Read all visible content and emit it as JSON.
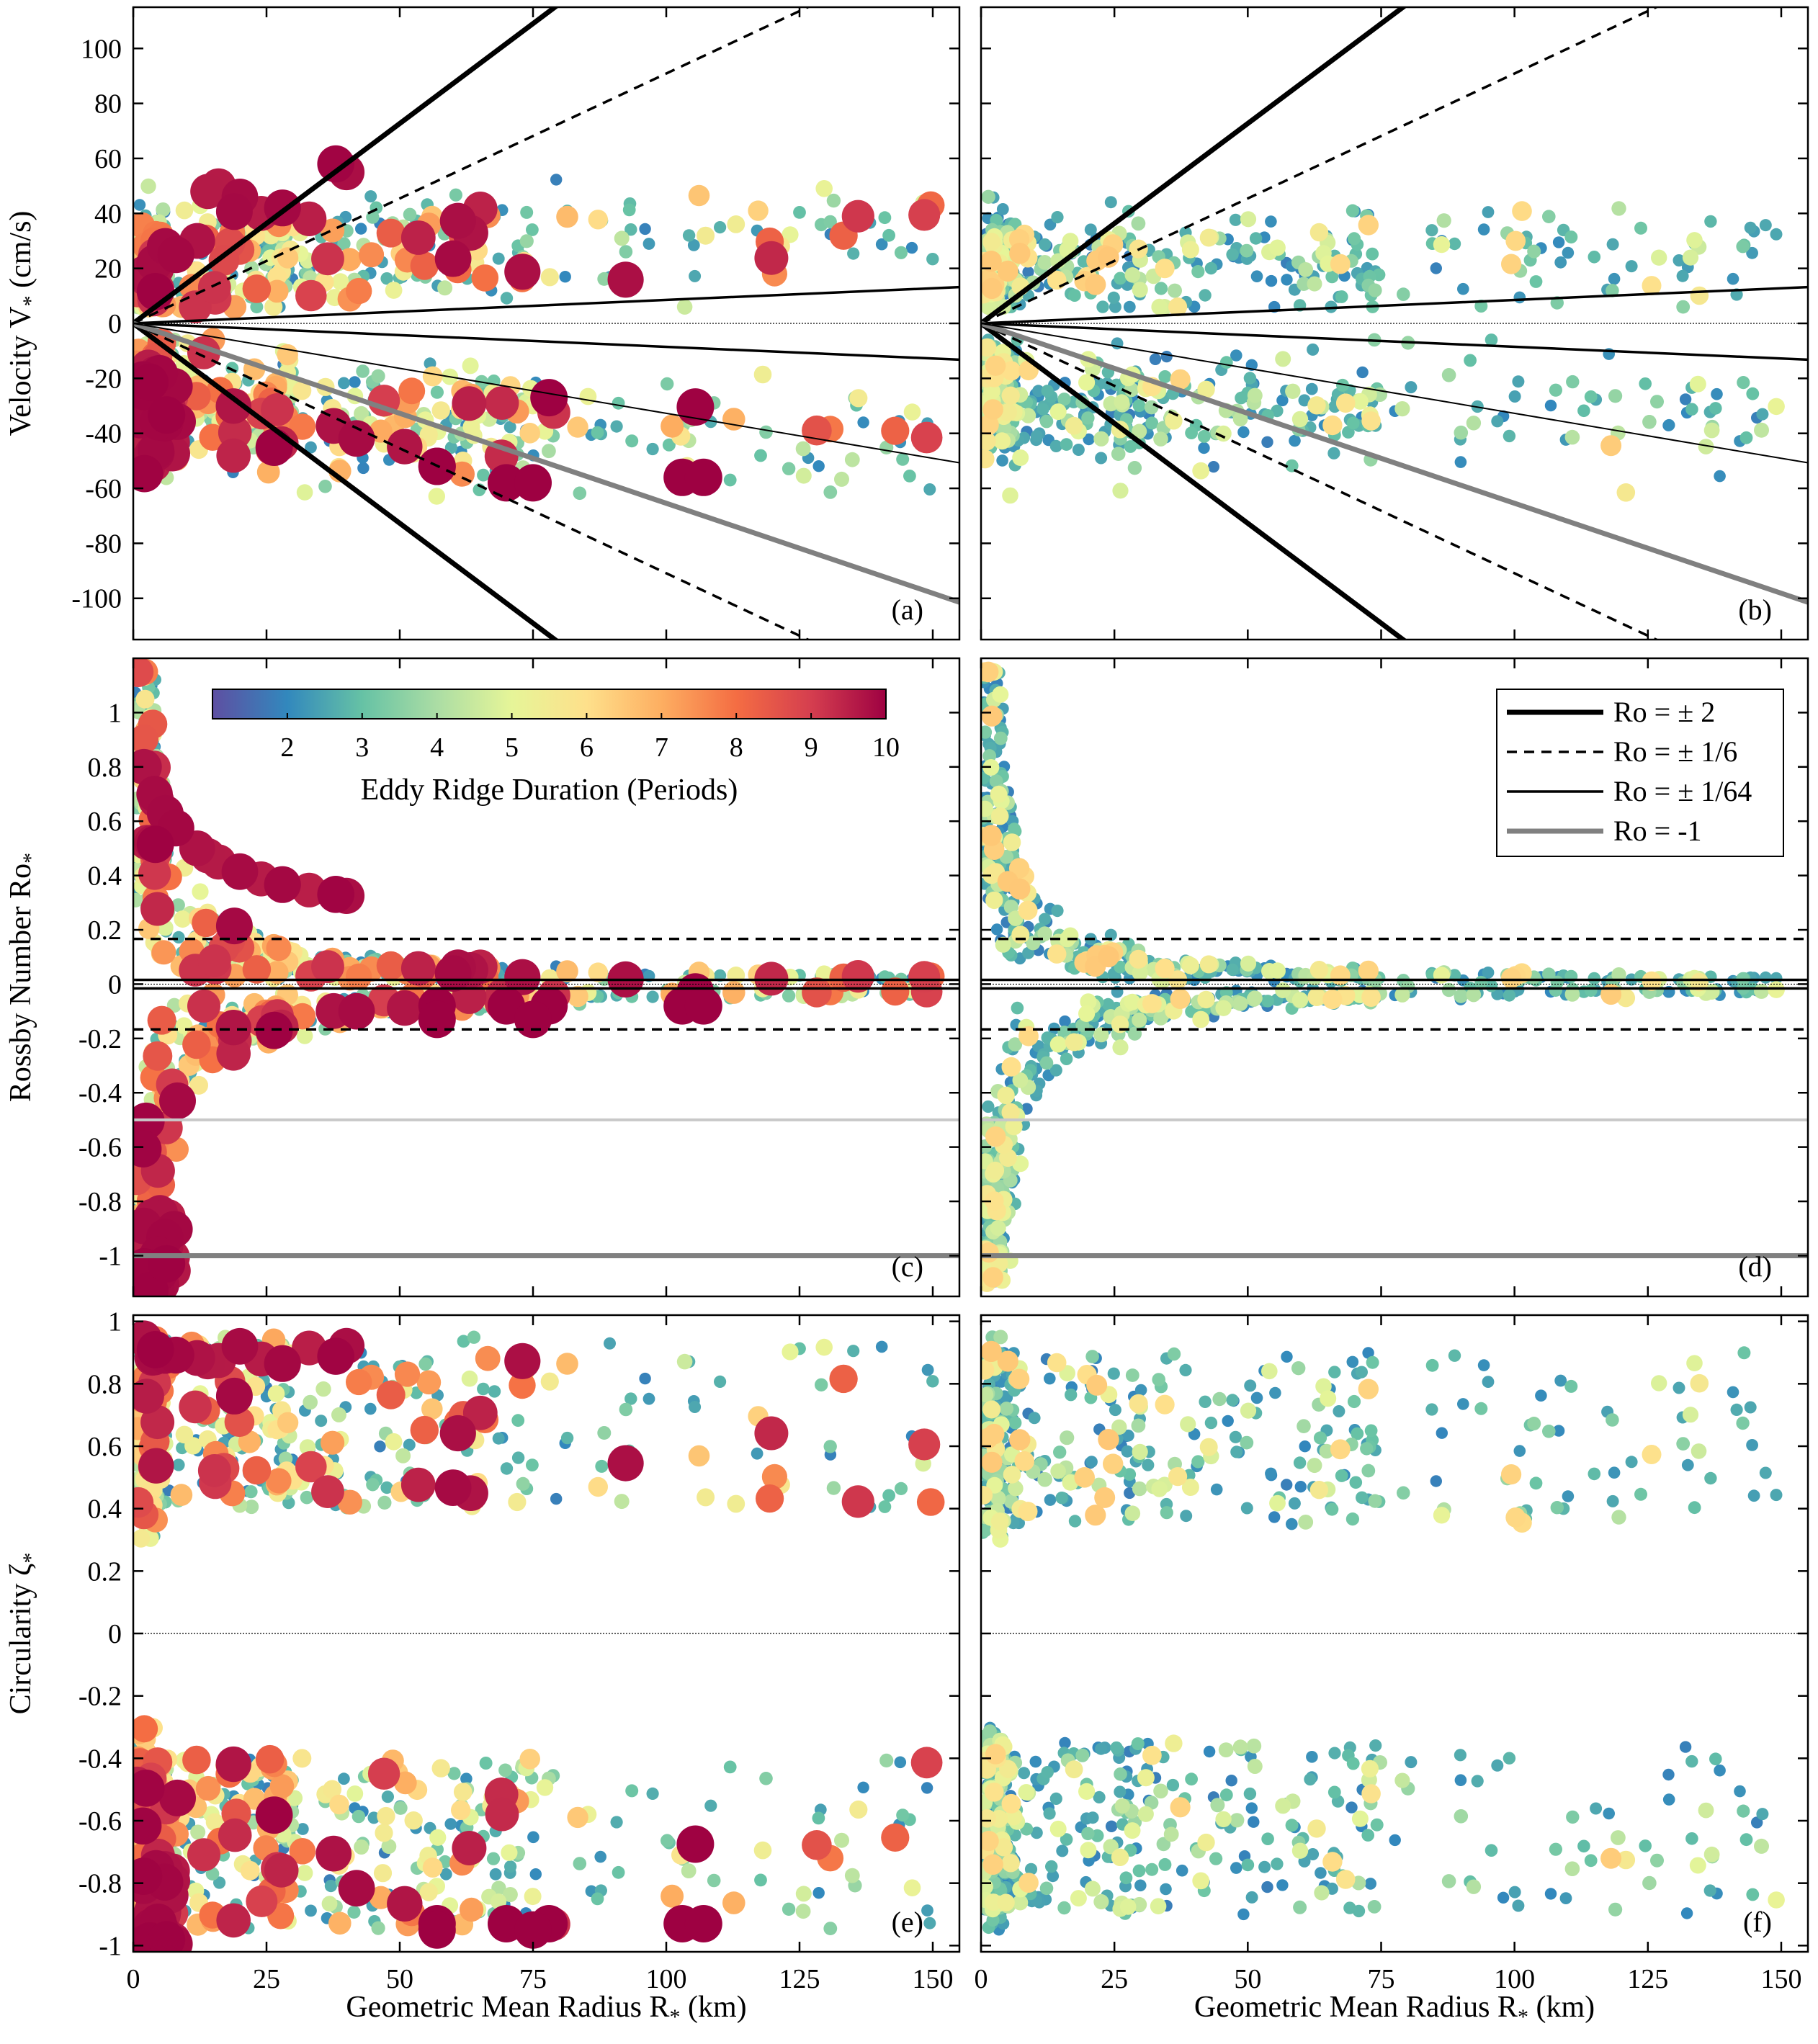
{
  "colormap": [
    "#5e4fa2",
    "#3288bd",
    "#66c2a5",
    "#abdda4",
    "#e6f598",
    "#fee08b",
    "#fdae61",
    "#f46d43",
    "#d53e4f",
    "#9e0142"
  ],
  "colorbar": {
    "label": "Eddy Ridge Duration (Periods)",
    "ticks": [
      "2",
      "3",
      "4",
      "5",
      "6",
      "7",
      "8",
      "9",
      "10"
    ],
    "range": [
      1,
      10
    ]
  },
  "legend": [
    {
      "label": "Ro = ± 2",
      "style": "thick-solid"
    },
    {
      "label": "Ro = ± 1/6",
      "style": "dashed"
    },
    {
      "label": "Ro = ± 1/64",
      "style": "thin-solid"
    },
    {
      "label": "Ro = -1",
      "style": "gray-thick"
    }
  ],
  "axes": {
    "xlabel": "Geometric Mean Radius R",
    "xlabel_sub": "*",
    "xlabel_unit": " (km)",
    "xticks": [
      "0",
      "25",
      "50",
      "75",
      "100",
      "125",
      "150"
    ],
    "xlim": [
      0,
      155
    ],
    "rows": [
      {
        "ylabel": "Velocity V",
        "ylabel_sub": "*",
        "ylabel_unit": " (cm/s)",
        "ylim": [
          -115,
          115
        ],
        "yticks": [
          "-100",
          "-80",
          "-60",
          "-40",
          "-20",
          "0",
          "20",
          "40",
          "60",
          "80",
          "100"
        ]
      },
      {
        "ylabel": "Rossby Number Ro",
        "ylabel_sub": "*",
        "ylabel_unit": "",
        "ylim": [
          -1.15,
          1.2
        ],
        "yticks": [
          "-1",
          "-0.8",
          "-0.6",
          "-0.4",
          "-0.2",
          "0",
          "0.2",
          "0.4",
          "0.6",
          "0.8",
          "1"
        ]
      },
      {
        "ylabel": "Circularity ζ",
        "ylabel_sub": "*",
        "ylabel_unit": "",
        "ylim": [
          -1.02,
          1.02
        ],
        "yticks": [
          "-1",
          "-0.8",
          "-0.6",
          "-0.4",
          "-0.2",
          "0",
          "0.2",
          "0.4",
          "0.6",
          "0.8",
          "1"
        ]
      }
    ]
  },
  "chart_data": [
    {
      "panel": "(a)",
      "type": "scatter",
      "x_var": "R* (km)",
      "y_var": "V* (cm/s)",
      "ylim": [
        -115,
        115
      ],
      "reference_lines": [
        "Ro = ±2",
        "Ro = ±1/6",
        "Ro = ±1/64",
        "Ro = -1"
      ],
      "clusters": [
        {
          "desc": "anticyclonic long-lived",
          "x": [
            2,
            5,
            8,
            12,
            16,
            20,
            24,
            28,
            33,
            38,
            40
          ],
          "y": [
            20,
            25,
            28,
            30,
            50,
            45,
            40,
            42,
            38,
            60,
            55
          ],
          "duration": [
            10,
            10,
            10,
            9,
            10,
            10,
            10,
            10,
            10,
            10,
            10
          ]
        },
        {
          "desc": "cyclonic long-lived",
          "x": [
            57,
            70,
            100,
            105
          ],
          "y": [
            -52,
            -58,
            -56,
            -56
          ],
          "duration": [
            10,
            9,
            10,
            10
          ]
        }
      ]
    },
    {
      "panel": "(b)",
      "type": "scatter",
      "x_var": "R* (km)",
      "y_var": "V* (cm/s)",
      "ylim": [
        -115,
        115
      ]
    },
    {
      "panel": "(c)",
      "type": "scatter",
      "x_var": "R* (km)",
      "y_var": "Ro*",
      "ylim": [
        -1.15,
        1.2
      ],
      "reference_lines": [
        "Ro = ±1/6",
        "Ro = ±1/64",
        "Ro = -0.5",
        "Ro = -1"
      ]
    },
    {
      "panel": "(d)",
      "type": "scatter",
      "x_var": "R* (km)",
      "y_var": "Ro*",
      "ylim": [
        -1.15,
        1.2
      ]
    },
    {
      "panel": "(e)",
      "type": "scatter",
      "x_var": "R* (km)",
      "y_var": "ζ*",
      "ylim": [
        -1.02,
        1.02
      ]
    },
    {
      "panel": "(f)",
      "type": "scatter",
      "x_var": "R* (km)",
      "y_var": "ζ*",
      "ylim": [
        -1.02,
        1.02
      ]
    }
  ]
}
